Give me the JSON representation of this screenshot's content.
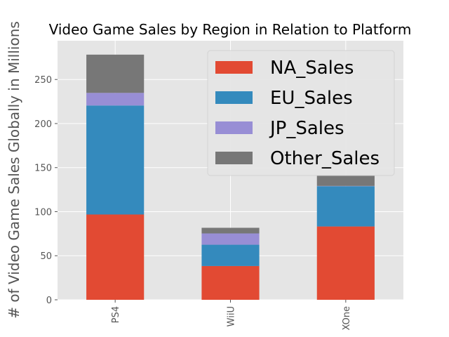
{
  "chart_data": {
    "type": "bar",
    "stacked": true,
    "title": "Video Game Sales by Region in Relation to Platform",
    "xlabel": "",
    "ylabel": "# of Video Game Sales Globally in Millions",
    "categories": [
      "PS4",
      "WiiU",
      "XOne"
    ],
    "series": [
      {
        "name": "NA_Sales",
        "color": "#E24A33",
        "values": [
          96.8,
          38.3,
          83.2
        ]
      },
      {
        "name": "EU_Sales",
        "color": "#348ABD",
        "values": [
          123.7,
          24.2,
          45.7
        ]
      },
      {
        "name": "JP_Sales",
        "color": "#988ED5",
        "values": [
          14.3,
          12.8,
          0.3
        ]
      },
      {
        "name": "Other_Sales",
        "color": "#777777",
        "values": [
          43.4,
          6.4,
          11.9
        ]
      }
    ],
    "ylim": [
      0,
      294
    ],
    "yticks": [
      0,
      50,
      100,
      150,
      200,
      250
    ],
    "grid": true,
    "legend_position": "top-right"
  }
}
